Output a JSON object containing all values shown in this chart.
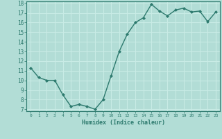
{
  "x": [
    0,
    1,
    2,
    3,
    4,
    5,
    6,
    7,
    8,
    9,
    10,
    11,
    12,
    13,
    14,
    15,
    16,
    17,
    18,
    19,
    20,
    21,
    22,
    23
  ],
  "y": [
    11.3,
    10.3,
    10.0,
    10.0,
    8.5,
    7.3,
    7.5,
    7.3,
    7.0,
    8.0,
    10.5,
    13.0,
    14.8,
    16.0,
    16.5,
    17.9,
    17.2,
    16.7,
    17.3,
    17.5,
    17.1,
    17.2,
    16.1,
    17.1
  ],
  "xlabel": "Humidex (Indice chaleur)",
  "xlim": [
    -0.5,
    23.5
  ],
  "ylim": [
    6.8,
    18.2
  ],
  "yticks": [
    7,
    8,
    9,
    10,
    11,
    12,
    13,
    14,
    15,
    16,
    17,
    18
  ],
  "xticks": [
    0,
    1,
    2,
    3,
    4,
    5,
    6,
    7,
    8,
    9,
    10,
    11,
    12,
    13,
    14,
    15,
    16,
    17,
    18,
    19,
    20,
    21,
    22,
    23
  ],
  "line_color": "#2d7a6e",
  "bg_color": "#b2ddd6",
  "grid_color": "#c8ebe5",
  "tick_color": "#2d7a6e",
  "marker_size": 2.0,
  "line_width": 1.0
}
